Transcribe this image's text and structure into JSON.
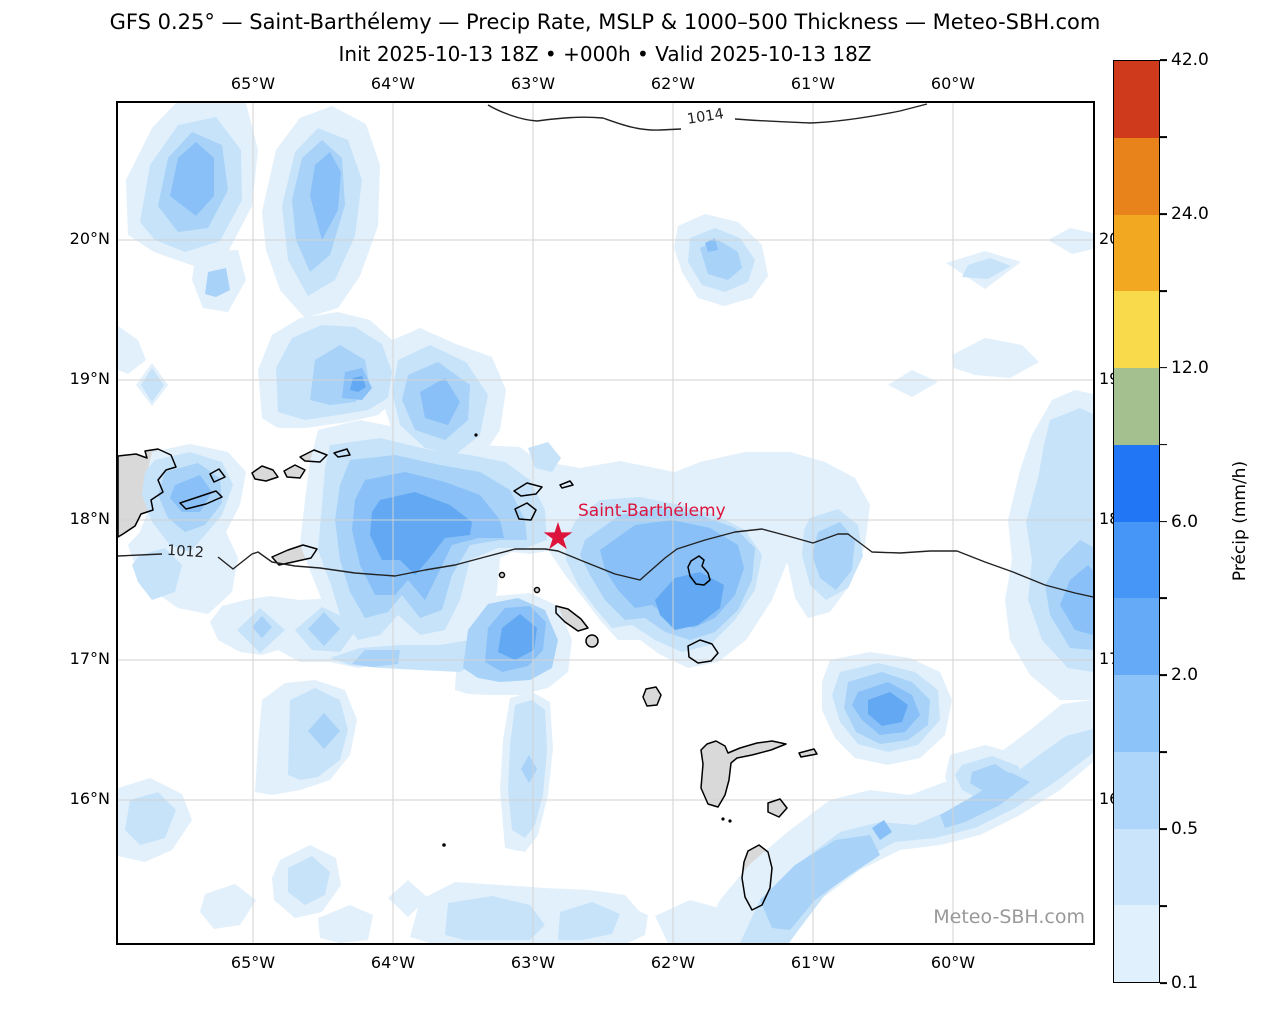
{
  "title": "GFS 0.25° — Saint-Barthélemy — Precip Rate, MSLP & 1000–500 Thickness — Meteo-SBH.com",
  "subtitle": "Init 2025-10-13 18Z • +000h • Valid 2025-10-13 18Z",
  "map": {
    "top_axis": [
      "65°W",
      "64°W",
      "63°W",
      "62°W",
      "61°W",
      "60°W"
    ],
    "bottom_axis": [
      "65°W",
      "64°W",
      "63°W",
      "62°W",
      "61°W",
      "60°W"
    ],
    "left_axis": [
      "20°N",
      "19°N",
      "18°N",
      "17°N",
      "16°N"
    ],
    "right_axis": [
      "20°N",
      "19°N",
      "18°N",
      "17°N",
      "16°N"
    ],
    "isobar_labels": {
      "upper": "1014",
      "lower": "1012"
    },
    "station_label": "Saint-Barthélemy",
    "watermark": "Meteo-SBH.com"
  },
  "colorbar": {
    "label": "Précip (mm/h)",
    "levels_mm_h": [
      0.1,
      0.25,
      0.5,
      1,
      2,
      4,
      6,
      8,
      12,
      18,
      24,
      32,
      42
    ],
    "segment_colors_bottom_to_top": [
      "#e0f0fc",
      "#c9e4fb",
      "#add6fa",
      "#8cc4f9",
      "#64aaf7",
      "#4596f7",
      "#2176f5",
      "#a4c08f",
      "#f8da4a",
      "#f2a820",
      "#e8821a",
      "#cf3a1c"
    ],
    "tick_labels": [
      {
        "text": "42.0",
        "pos": 0
      },
      {
        "text": "24.0",
        "pos": 0.1667
      },
      {
        "text": "12.0",
        "pos": 0.3333
      },
      {
        "text": "6.0",
        "pos": 0.5
      },
      {
        "text": "2.0",
        "pos": 0.6667
      },
      {
        "text": "0.5",
        "pos": 0.8333
      },
      {
        "text": "0.1",
        "pos": 1
      }
    ]
  },
  "palette": {
    "p1": "#e2f0fc",
    "p2": "#c7e3fa",
    "p3": "#a8d2f8",
    "p4": "#88c0f7",
    "p5": "#63a8f2",
    "land": "#d9d9d9",
    "grid": "#d2d2d2",
    "coast": "#000000",
    "isobar": "#222222",
    "station": "#dc143c",
    "watermark": "#999999",
    "frame": "#000000"
  },
  "chart_data": {
    "type": "map",
    "projection": "PlateCarree",
    "extent": {
      "west_lon": -66,
      "east_lon": -59,
      "south_lat": 15,
      "north_lat": 21
    },
    "lon_gridlines_W": [
      65,
      64,
      63,
      62,
      61,
      60
    ],
    "lat_gridlines_N": [
      20,
      19,
      18,
      17,
      16
    ],
    "isobars_hPa": [
      1012,
      1014
    ],
    "precip_shading_levels_mm_h": [
      0.1,
      0.25,
      0.5,
      1,
      2,
      4,
      6,
      8,
      12,
      18,
      24,
      32,
      42
    ],
    "station": {
      "name": "Saint-Barthélemy",
      "lon": -62.83,
      "lat": 17.9
    },
    "model": "GFS 0.25°",
    "init": "2025-10-13 18Z",
    "forecast_hour": "+000h",
    "valid": "2025-10-13 18Z"
  }
}
